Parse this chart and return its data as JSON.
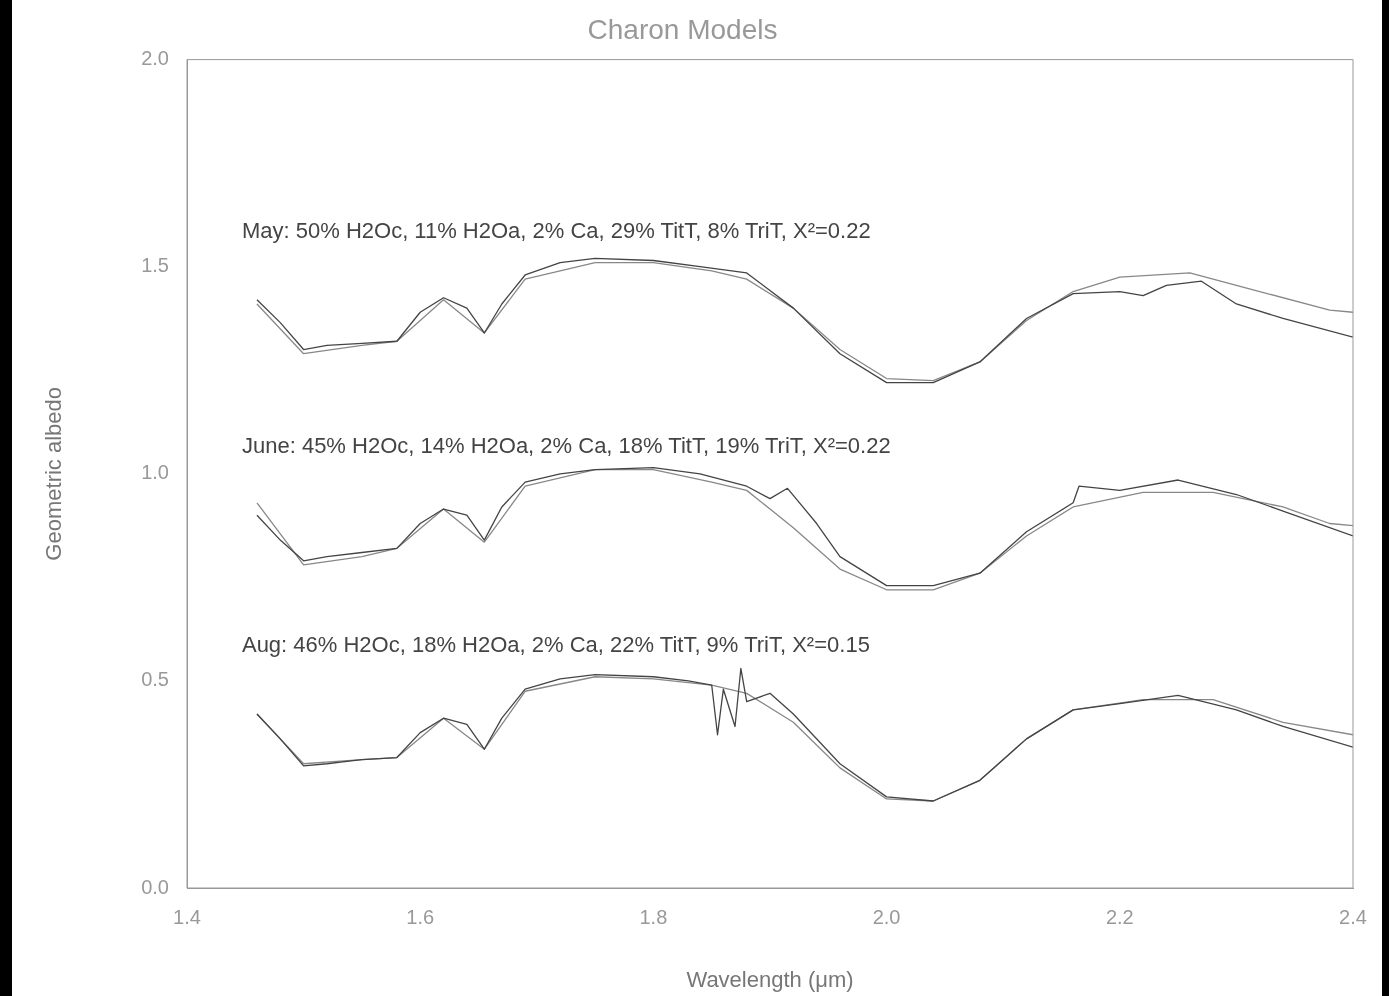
{
  "chart_data": {
    "type": "line",
    "title": "Charon Models",
    "xlabel": "Wavelength (μm)",
    "ylabel": "Geometric albedo",
    "xlim": [
      1.4,
      2.4
    ],
    "xticks": [
      1.4,
      1.6,
      1.8,
      {
        "value": 2,
        "label": "2.0"
      },
      2.2,
      2.4
    ],
    "ylim": [
      0,
      2
    ],
    "yticks": [
      {
        "value": 0,
        "label": "0.0"
      },
      0.5,
      {
        "value": 1,
        "label": "1.0"
      },
      1.5,
      {
        "value": 2,
        "label": "2.0"
      }
    ],
    "legend": false,
    "series": [
      {
        "name": "May: 50% H2Oc, 11% H2Oa, 2% Ca, 29% TitT, 8% TriT, X²=0.22",
        "color": "#444444",
        "x": [
          1.46,
          1.48,
          1.5,
          1.52,
          1.55,
          1.58,
          1.6,
          1.62,
          1.64,
          1.655,
          1.67,
          1.69,
          1.72,
          1.75,
          1.8,
          1.84,
          1.88,
          1.92,
          1.96,
          2.0,
          2.04,
          2.08,
          2.12,
          2.16,
          2.2,
          2.22,
          2.24,
          2.27,
          2.3,
          2.34,
          2.4
        ],
        "values": [
          1.42,
          1.365,
          1.3,
          1.31,
          1.315,
          1.32,
          1.39,
          1.425,
          1.4,
          1.34,
          1.41,
          1.48,
          1.51,
          1.52,
          1.515,
          1.5,
          1.485,
          1.4,
          1.29,
          1.22,
          1.22,
          1.27,
          1.375,
          1.435,
          1.44,
          1.43,
          1.455,
          1.465,
          1.41,
          1.375,
          1.33
        ]
      },
      {
        "color": "#888888",
        "x": [
          1.46,
          1.5,
          1.55,
          1.58,
          1.62,
          1.655,
          1.69,
          1.75,
          1.8,
          1.85,
          1.88,
          1.92,
          1.96,
          2.0,
          2.04,
          2.08,
          2.12,
          2.16,
          2.2,
          2.26,
          2.32,
          2.38,
          2.4
        ],
        "values": [
          1.41,
          1.29,
          1.31,
          1.32,
          1.42,
          1.34,
          1.47,
          1.51,
          1.51,
          1.49,
          1.47,
          1.4,
          1.3,
          1.23,
          1.225,
          1.27,
          1.37,
          1.44,
          1.475,
          1.485,
          1.44,
          1.395,
          1.39
        ]
      },
      {
        "name": "June: 45% H2Oc, 14% H2Oa, 2% Ca, 18% TitT, 19% TriT, X²=0.22",
        "color": "#444444",
        "x": [
          1.46,
          1.48,
          1.5,
          1.52,
          1.55,
          1.58,
          1.6,
          1.62,
          1.64,
          1.655,
          1.67,
          1.69,
          1.72,
          1.75,
          1.8,
          1.84,
          1.88,
          1.9,
          1.915,
          1.94,
          1.96,
          2.0,
          2.04,
          2.08,
          2.12,
          2.16,
          2.165,
          2.2,
          2.25,
          2.3,
          2.34,
          2.4
        ],
        "values": [
          0.9,
          0.84,
          0.79,
          0.8,
          0.81,
          0.82,
          0.88,
          0.915,
          0.9,
          0.84,
          0.92,
          0.98,
          1.0,
          1.01,
          1.015,
          1.0,
          0.97,
          0.94,
          0.965,
          0.88,
          0.8,
          0.73,
          0.73,
          0.76,
          0.86,
          0.93,
          0.97,
          0.96,
          0.985,
          0.95,
          0.91,
          0.85
        ]
      },
      {
        "color": "#888888",
        "x": [
          1.46,
          1.5,
          1.55,
          1.58,
          1.62,
          1.655,
          1.69,
          1.75,
          1.8,
          1.85,
          1.88,
          1.92,
          1.96,
          2.0,
          2.04,
          2.08,
          2.12,
          2.16,
          2.22,
          2.28,
          2.34,
          2.38,
          2.4
        ],
        "values": [
          0.93,
          0.78,
          0.8,
          0.82,
          0.915,
          0.835,
          0.97,
          1.01,
          1.01,
          0.98,
          0.96,
          0.87,
          0.77,
          0.72,
          0.72,
          0.76,
          0.85,
          0.92,
          0.955,
          0.955,
          0.92,
          0.88,
          0.875
        ]
      },
      {
        "name": "Aug: 46% H2Oc, 18% H2Oa, 2% Ca, 22% TitT, 9% TriT, X²=0.15",
        "color": "#444444",
        "x": [
          1.46,
          1.48,
          1.5,
          1.52,
          1.55,
          1.58,
          1.6,
          1.62,
          1.64,
          1.655,
          1.67,
          1.69,
          1.72,
          1.75,
          1.8,
          1.83,
          1.85,
          1.855,
          1.86,
          1.87,
          1.875,
          1.88,
          1.9,
          1.92,
          1.96,
          2.0,
          2.04,
          2.08,
          2.12,
          2.16,
          2.2,
          2.25,
          2.3,
          2.34,
          2.4
        ],
        "values": [
          0.42,
          0.36,
          0.295,
          0.3,
          0.31,
          0.315,
          0.375,
          0.41,
          0.395,
          0.335,
          0.41,
          0.48,
          0.505,
          0.515,
          0.51,
          0.5,
          0.49,
          0.37,
          0.48,
          0.39,
          0.53,
          0.45,
          0.47,
          0.42,
          0.3,
          0.22,
          0.21,
          0.26,
          0.36,
          0.43,
          0.445,
          0.465,
          0.43,
          0.39,
          0.34
        ]
      },
      {
        "color": "#888888",
        "x": [
          1.46,
          1.5,
          1.55,
          1.58,
          1.62,
          1.655,
          1.69,
          1.75,
          1.8,
          1.85,
          1.88,
          1.92,
          1.96,
          2.0,
          2.04,
          2.08,
          2.12,
          2.16,
          2.22,
          2.28,
          2.34,
          2.4
        ],
        "values": [
          0.42,
          0.3,
          0.31,
          0.315,
          0.41,
          0.335,
          0.475,
          0.51,
          0.505,
          0.49,
          0.47,
          0.4,
          0.29,
          0.215,
          0.21,
          0.26,
          0.36,
          0.43,
          0.455,
          0.455,
          0.4,
          0.37
        ]
      }
    ]
  }
}
